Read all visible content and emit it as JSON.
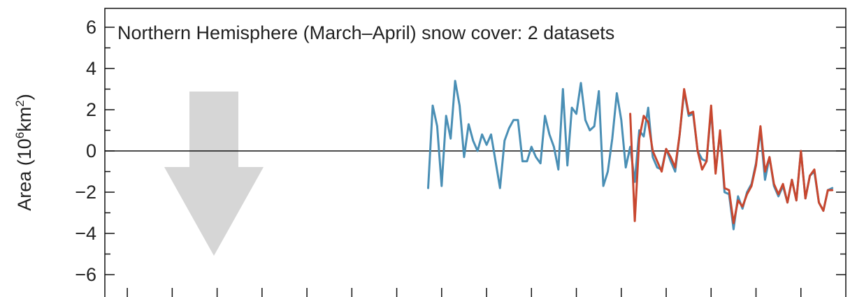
{
  "chart_data": {
    "type": "line",
    "title": "Northern Hemisphere (March–April) snow cover: 2 datasets",
    "ylabel": "Area (10⁶km²)",
    "ylabel_parts": {
      "prefix": "Area (10",
      "sup1": "6",
      "mid": "km",
      "sup2": "2",
      "suffix": ")"
    },
    "ylim": [
      -7,
      7
    ],
    "yticks": [
      6,
      4,
      2,
      0,
      -2,
      -4,
      -6
    ],
    "ytick_labels": [
      "6",
      "4",
      "2",
      "0",
      "−2",
      "−4",
      "−6"
    ],
    "xlim": [
      1850,
      2015
    ],
    "x_tick_years": [
      1855,
      1865,
      1875,
      1885,
      1895,
      1905,
      1915,
      1925,
      1935,
      1945,
      1955,
      1965,
      1975,
      1985,
      1995,
      2005
    ],
    "zero_line": true,
    "grid": false,
    "arrow": "down",
    "colors": {
      "series1": "#4a8fb5",
      "series2": "#c8472f",
      "arrow": "#d6d6d6",
      "axis": "#111111"
    },
    "series": [
      {
        "color": "#4a8fb5",
        "x": [
          1922,
          1923,
          1924,
          1925,
          1926,
          1927,
          1928,
          1929,
          1930,
          1931,
          1932,
          1933,
          1934,
          1935,
          1936,
          1937,
          1938,
          1939,
          1940,
          1941,
          1942,
          1943,
          1944,
          1945,
          1946,
          1947,
          1948,
          1949,
          1950,
          1951,
          1952,
          1953,
          1954,
          1955,
          1956,
          1957,
          1958,
          1959,
          1960,
          1961,
          1962,
          1963,
          1964,
          1965,
          1966,
          1967,
          1968,
          1969,
          1970,
          1971,
          1972,
          1973,
          1974,
          1975,
          1976,
          1977,
          1978,
          1979,
          1980,
          1981,
          1982,
          1983,
          1984,
          1985,
          1986,
          1987,
          1988,
          1989,
          1990,
          1991,
          1992,
          1993,
          1994,
          1995,
          1996,
          1997,
          1998,
          1999,
          2000,
          2001,
          2002,
          2003,
          2004,
          2005,
          2006,
          2007,
          2008,
          2009,
          2010,
          2011,
          2012
        ],
        "values": [
          -1.8,
          2.2,
          1.2,
          -1.7,
          1.7,
          0.6,
          3.4,
          2.2,
          -0.3,
          1.3,
          0.5,
          0.0,
          0.8,
          0.3,
          0.8,
          -0.5,
          -1.8,
          0.5,
          1.1,
          1.5,
          1.5,
          -0.5,
          -0.5,
          0.2,
          -0.3,
          -0.6,
          1.7,
          0.8,
          0.2,
          -0.9,
          3.0,
          -0.7,
          2.1,
          1.8,
          3.3,
          1.5,
          1.0,
          1.2,
          2.9,
          -1.7,
          -1.0,
          0.6,
          2.8,
          1.5,
          -0.8,
          0.2,
          -1.5,
          1.0,
          0.7,
          2.1,
          -0.3,
          -0.8,
          -0.9,
          0.1,
          -0.5,
          -1.0,
          0.8,
          2.9,
          1.7,
          1.8,
          0.0,
          -0.4,
          -0.5,
          2.0,
          -1.0,
          0.9,
          -2.0,
          -2.1,
          -3.8,
          -2.2,
          -2.8,
          -2.0,
          -1.6,
          -0.6,
          1.0,
          -1.4,
          -0.3,
          -1.7,
          -2.2,
          -1.7,
          -2.5,
          -1.4,
          -2.4,
          0.0,
          -2.3,
          -1.2,
          -1.0,
          -2.5,
          -2.9,
          -1.9,
          -1.8
        ]
      },
      {
        "color": "#c8472f",
        "x": [
          1967,
          1968,
          1969,
          1970,
          1971,
          1972,
          1973,
          1974,
          1975,
          1976,
          1977,
          1978,
          1979,
          1980,
          1981,
          1982,
          1983,
          1984,
          1985,
          1986,
          1987,
          1988,
          1989,
          1990,
          1991,
          1992,
          1993,
          1994,
          1995,
          1996,
          1997,
          1998,
          1999,
          2000,
          2001,
          2002,
          2003,
          2004,
          2005,
          2006,
          2007,
          2008,
          2009,
          2010,
          2011,
          2012
        ],
        "values": [
          1.8,
          -3.4,
          0.6,
          1.7,
          1.4,
          0.0,
          -0.5,
          -1.0,
          0.1,
          -0.3,
          -0.8,
          0.8,
          3.0,
          1.8,
          1.9,
          0.0,
          -0.9,
          -0.5,
          2.2,
          -1.1,
          1.0,
          -1.8,
          -1.9,
          -3.5,
          -2.4,
          -2.7,
          -2.1,
          -1.7,
          -0.7,
          1.2,
          -1.0,
          -0.3,
          -1.6,
          -2.1,
          -1.6,
          -2.5,
          -1.4,
          -2.4,
          0.0,
          -2.3,
          -1.2,
          -0.9,
          -2.5,
          -2.9,
          -1.9,
          -1.9
        ]
      }
    ]
  }
}
